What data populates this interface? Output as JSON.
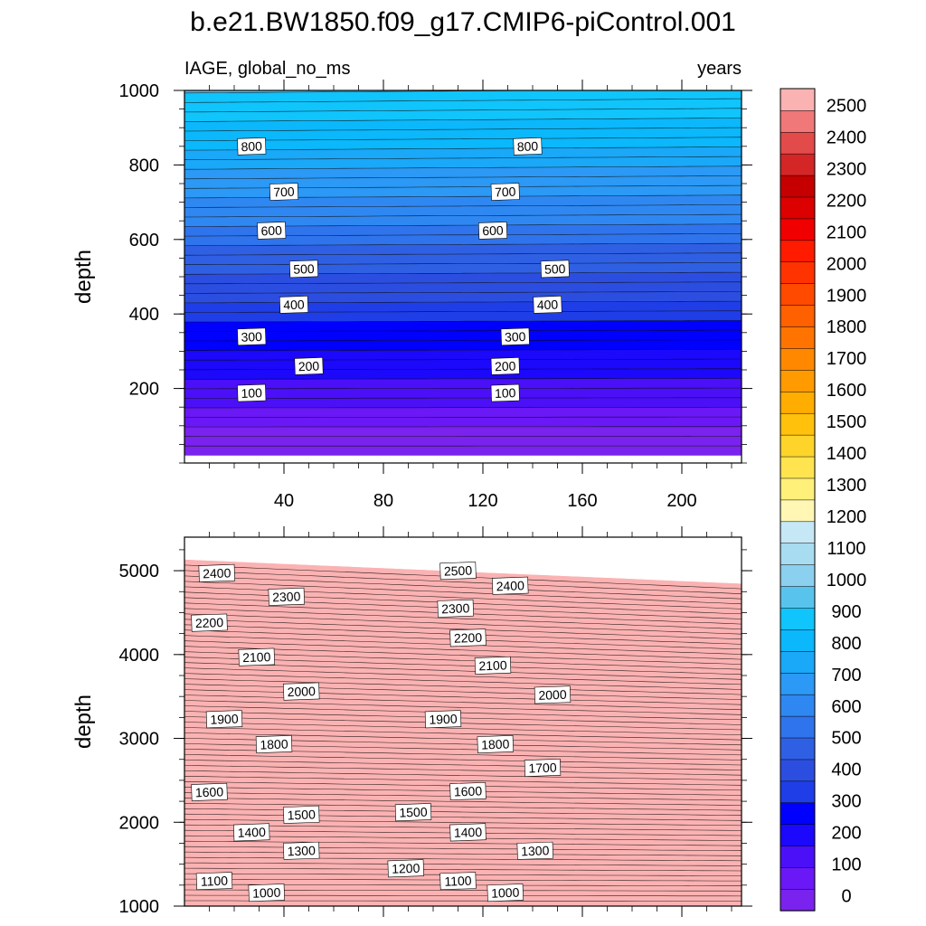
{
  "chart_data": {
    "type": "contour",
    "title": "b.e21.BW1850.f09_g17.CMIP6-piControl.001",
    "colorbar": {
      "levels": [
        0,
        100,
        200,
        300,
        400,
        500,
        600,
        700,
        800,
        900,
        1000,
        1100,
        1200,
        1300,
        1400,
        1500,
        1600,
        1700,
        1800,
        1900,
        2000,
        2100,
        2200,
        2300,
        2400,
        2500
      ],
      "tick_labels": [
        "0",
        "100",
        "200",
        "300",
        "400",
        "500",
        "600",
        "700",
        "800",
        "900",
        "1000",
        "1100",
        "1200",
        "1300",
        "1400",
        "1500",
        "1600",
        "1700",
        "1800",
        "1900",
        "2000",
        "2100",
        "2200",
        "2300",
        "2400",
        "2500"
      ],
      "colors": [
        "#7a22ee",
        "#6a18f5",
        "#4b10f8",
        "#1c08fb",
        "#0000ff",
        "#1f3ee8",
        "#2c4ee0",
        "#2f60e4",
        "#2f74ec",
        "#2f88f2",
        "#2b99f5",
        "#1aa8f8",
        "#0ab8fb",
        "#10c4fc",
        "#58c4ee",
        "#8bd0ee",
        "#a8dcf0",
        "#c6e8f6",
        "#fff7b3",
        "#fff07a",
        "#ffe44f",
        "#ffd42a",
        "#ffc10c",
        "#ffad00",
        "#ff9a00",
        "#ff8800",
        "#ff7400",
        "#ff6000",
        "#ff4a00",
        "#ff3300",
        "#ff1b00",
        "#f00000",
        "#dc0000",
        "#c60000",
        "#d42626",
        "#e34a4a",
        "#f07878",
        "#fbb2b2"
      ]
    },
    "panels": [
      {
        "name": "upper",
        "left_label": "IAGE, global_no_ms",
        "right_label": "years",
        "ylabel": "depth",
        "xlim": [
          0,
          224
        ],
        "ylim": [
          1000,
          0
        ],
        "x_ticks": [
          40,
          80,
          120,
          160,
          200
        ],
        "x_tick_labels": [
          "40",
          "80",
          "120",
          "160",
          "200"
        ],
        "y_ticks": [
          200,
          400,
          600,
          800,
          1000
        ],
        "y_tick_labels": [
          "200",
          "400",
          "600",
          "800",
          "1000"
        ],
        "contour_interval": 25,
        "contour_labels": [
          {
            "text": "100",
            "x": 27,
            "y": 188
          },
          {
            "text": "100",
            "x": 129,
            "y": 188
          },
          {
            "text": "200",
            "x": 50,
            "y": 260
          },
          {
            "text": "200",
            "x": 129,
            "y": 260
          },
          {
            "text": "300",
            "x": 27,
            "y": 339
          },
          {
            "text": "300",
            "x": 133,
            "y": 339
          },
          {
            "text": "400",
            "x": 44,
            "y": 425
          },
          {
            "text": "400",
            "x": 146,
            "y": 425
          },
          {
            "text": "500",
            "x": 48,
            "y": 521
          },
          {
            "text": "500",
            "x": 149,
            "y": 521
          },
          {
            "text": "600",
            "x": 35,
            "y": 624
          },
          {
            "text": "600",
            "x": 124,
            "y": 624
          },
          {
            "text": "700",
            "x": 40,
            "y": 728
          },
          {
            "text": "700",
            "x": 129,
            "y": 728
          },
          {
            "text": "800",
            "x": 27,
            "y": 850
          },
          {
            "text": "800",
            "x": 138,
            "y": 850
          }
        ]
      },
      {
        "name": "lower",
        "ylabel": "depth",
        "xlim": [
          0,
          224
        ],
        "ylim": [
          5400,
          1000
        ],
        "y_ticks": [
          1000,
          2000,
          3000,
          4000,
          5000
        ],
        "y_tick_labels": [
          "1000",
          "2000",
          "3000",
          "4000",
          "5000"
        ],
        "contour_interval": 25,
        "contour_labels": [
          {
            "text": "1000",
            "x": 33,
            "y": 1160
          },
          {
            "text": "1000",
            "x": 129,
            "y": 1160
          },
          {
            "text": "1100",
            "x": 12,
            "y": 1300
          },
          {
            "text": "1100",
            "x": 110,
            "y": 1300
          },
          {
            "text": "1200",
            "x": 89,
            "y": 1450
          },
          {
            "text": "1300",
            "x": 47,
            "y": 1660
          },
          {
            "text": "1300",
            "x": 141,
            "y": 1660
          },
          {
            "text": "1400",
            "x": 27,
            "y": 1880
          },
          {
            "text": "1400",
            "x": 114,
            "y": 1880
          },
          {
            "text": "1500",
            "x": 47,
            "y": 2090
          },
          {
            "text": "1500",
            "x": 92,
            "y": 2120
          },
          {
            "text": "1600",
            "x": 10,
            "y": 2360
          },
          {
            "text": "1600",
            "x": 114,
            "y": 2370
          },
          {
            "text": "1700",
            "x": 144,
            "y": 2650
          },
          {
            "text": "1800",
            "x": 36,
            "y": 2930
          },
          {
            "text": "1800",
            "x": 125,
            "y": 2930
          },
          {
            "text": "1900",
            "x": 16,
            "y": 3230
          },
          {
            "text": "1900",
            "x": 104,
            "y": 3230
          },
          {
            "text": "2000",
            "x": 47,
            "y": 3560
          },
          {
            "text": "2000",
            "x": 148,
            "y": 3520
          },
          {
            "text": "2100",
            "x": 29,
            "y": 3970
          },
          {
            "text": "2100",
            "x": 124,
            "y": 3870
          },
          {
            "text": "2200",
            "x": 10,
            "y": 4380
          },
          {
            "text": "2200",
            "x": 114,
            "y": 4200
          },
          {
            "text": "2300",
            "x": 41,
            "y": 4690
          },
          {
            "text": "2300",
            "x": 109,
            "y": 4550
          },
          {
            "text": "2400",
            "x": 13,
            "y": 4970
          },
          {
            "text": "2400",
            "x": 131,
            "y": 4820
          },
          {
            "text": "2500",
            "x": 110,
            "y": 5000
          }
        ]
      }
    ]
  }
}
